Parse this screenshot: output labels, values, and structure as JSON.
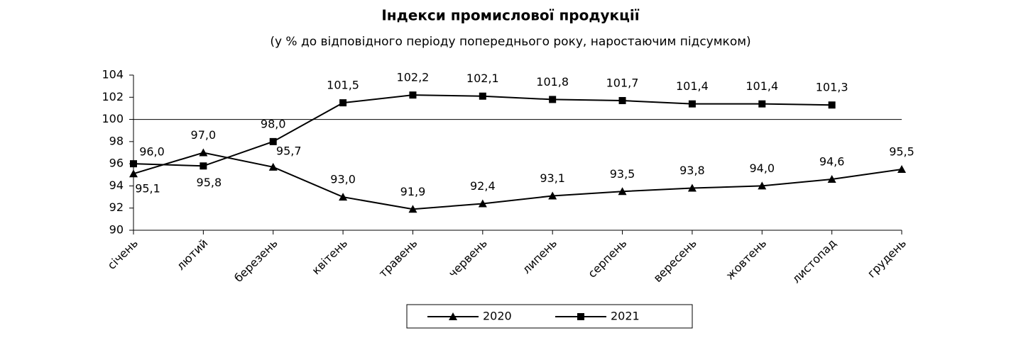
{
  "chart_data": {
    "type": "line",
    "title": "Індекси промислової продукції",
    "subtitle": "(у % до відповідного періоду попереднього року, наростаючим підсумком)",
    "categories": [
      "січень",
      "лютий",
      "березень",
      "квітень",
      "травень",
      "червень",
      "липень",
      "серпень",
      "вересень",
      "жовтень",
      "листопад",
      "грудень"
    ],
    "series": [
      {
        "name": "2020",
        "color": "#000000",
        "marker": "triangle",
        "values": [
          95.1,
          97.0,
          95.7,
          93.0,
          91.9,
          92.4,
          93.1,
          93.5,
          93.8,
          94.0,
          94.6,
          95.5
        ],
        "value_labels": [
          "95,1",
          "97,0",
          "95,7",
          "93,0",
          "91,9",
          "92,4",
          "93,1",
          "93,5",
          "93,8",
          "94,0",
          "94,6",
          "95,5"
        ]
      },
      {
        "name": "2021",
        "color": "#000000",
        "marker": "square",
        "values": [
          96.0,
          95.8,
          98.0,
          101.5,
          102.2,
          102.1,
          101.8,
          101.7,
          101.4,
          101.4,
          101.3,
          null
        ],
        "value_labels": [
          "96,0",
          "95,8",
          "98,0",
          "101,5",
          "102,2",
          "102,1",
          "101,8",
          "101,7",
          "101,4",
          "101,4",
          "101,3",
          null
        ]
      }
    ],
    "ylim": [
      90,
      104
    ],
    "yticks": [
      90,
      92,
      94,
      96,
      98,
      100,
      102,
      104
    ],
    "reference_line": 100,
    "grid": false,
    "legend": "bottom"
  }
}
